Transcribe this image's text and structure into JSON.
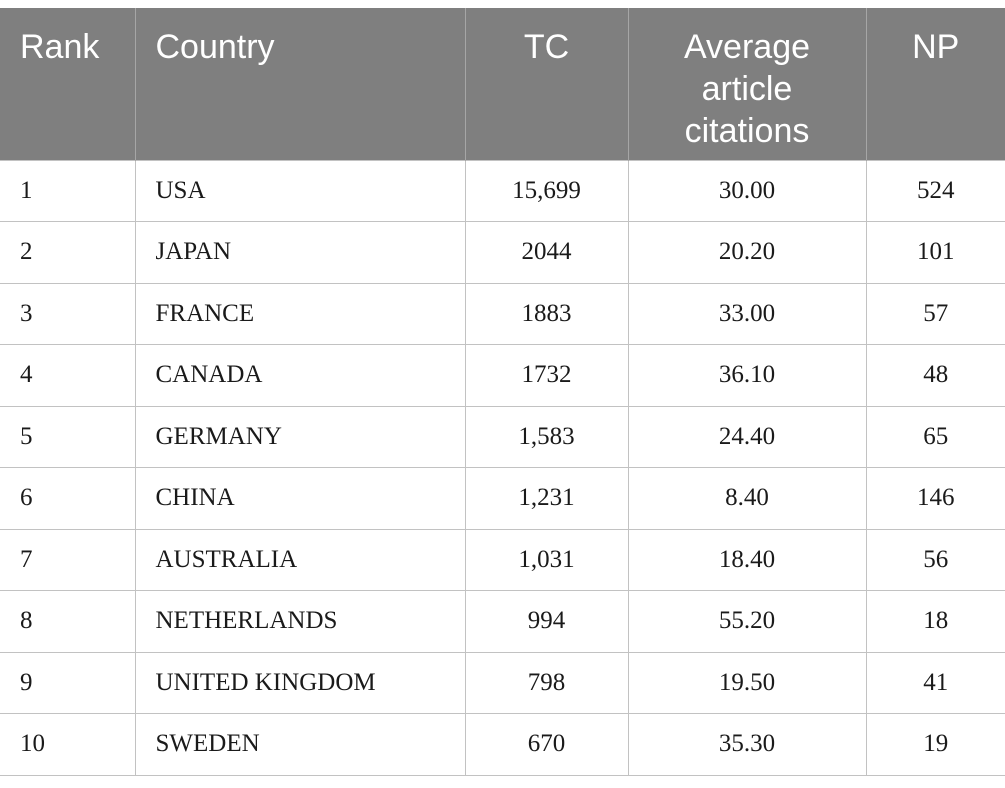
{
  "table": {
    "header": [
      "Rank",
      "Country",
      "TC",
      "Average article citations",
      "NP"
    ],
    "rows": [
      [
        "1",
        "USA",
        "15,699",
        "30.00",
        "524"
      ],
      [
        "2",
        "JAPAN",
        "2044",
        "20.20",
        "101"
      ],
      [
        "3",
        "FRANCE",
        "1883",
        "33.00",
        "57"
      ],
      [
        "4",
        "CANADA",
        "1732",
        "36.10",
        "48"
      ],
      [
        "5",
        "GERMANY",
        "1,583",
        "24.40",
        "65"
      ],
      [
        "6",
        "CHINA",
        "1,231",
        "8.40",
        "146"
      ],
      [
        "7",
        "AUSTRALIA",
        "1,031",
        "18.40",
        "56"
      ],
      [
        "8",
        "NETHERLANDS",
        "994",
        "55.20",
        "18"
      ],
      [
        "9",
        "UNITED KINGDOM",
        "798",
        "19.50",
        "41"
      ],
      [
        "10",
        "SWEDEN",
        "670",
        "35.30",
        "19"
      ]
    ]
  }
}
